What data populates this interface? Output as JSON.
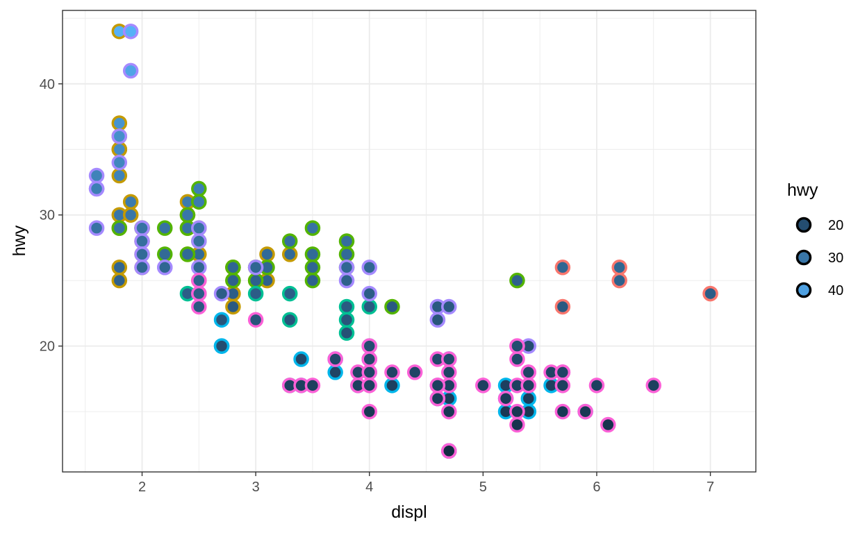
{
  "chart_data": {
    "type": "scatter",
    "title": "",
    "xlabel": "displ",
    "ylabel": "hwy",
    "xlim": [
      1.3,
      7.4
    ],
    "ylim": [
      10.4,
      45.6
    ],
    "x_ticks": [
      2,
      3,
      4,
      5,
      6,
      7
    ],
    "y_ticks": [
      20,
      30,
      40
    ],
    "grid": true,
    "legend": {
      "title": "hwy",
      "placement": "right",
      "entries": [
        {
          "label": "20",
          "value": 20
        },
        {
          "label": "30",
          "value": 30
        },
        {
          "label": "40",
          "value": 40
        }
      ]
    },
    "fill_scale": {
      "low_value": 12,
      "high_value": 44,
      "low_color": "#132B43",
      "high_color": "#56B1F7"
    },
    "series": [
      {
        "color": "#F8766D",
        "points": [
          [
            5.7,
            26
          ],
          [
            6.2,
            26
          ],
          [
            6.2,
            25
          ],
          [
            5.7,
            23
          ],
          [
            7.0,
            24
          ]
        ]
      },
      {
        "color": "#C49A00",
        "points": [
          [
            1.8,
            44
          ],
          [
            1.8,
            37
          ],
          [
            1.8,
            36
          ],
          [
            1.8,
            35
          ],
          [
            1.8,
            35
          ],
          [
            1.8,
            33
          ],
          [
            1.8,
            30
          ],
          [
            1.8,
            29
          ],
          [
            1.8,
            26
          ],
          [
            1.8,
            25
          ],
          [
            1.9,
            31
          ],
          [
            1.9,
            30
          ],
          [
            2.0,
            29
          ],
          [
            2.0,
            28
          ],
          [
            2.0,
            27
          ],
          [
            2.0,
            26
          ],
          [
            2.0,
            29
          ],
          [
            2.4,
            31
          ],
          [
            2.4,
            30
          ],
          [
            2.4,
            29
          ],
          [
            2.4,
            27
          ],
          [
            2.5,
            29
          ],
          [
            2.5,
            27
          ],
          [
            2.5,
            25
          ],
          [
            2.8,
            26
          ],
          [
            2.8,
            26
          ],
          [
            2.8,
            25
          ],
          [
            2.8,
            24
          ],
          [
            2.8,
            23
          ],
          [
            3.0,
            26
          ],
          [
            3.0,
            25
          ],
          [
            3.1,
            27
          ],
          [
            3.1,
            25
          ],
          [
            3.3,
            27
          ]
        ]
      },
      {
        "color": "#53B400",
        "points": [
          [
            1.8,
            29
          ],
          [
            2.0,
            29
          ],
          [
            2.2,
            29
          ],
          [
            2.2,
            27
          ],
          [
            2.4,
            30
          ],
          [
            2.4,
            29
          ],
          [
            2.4,
            27
          ],
          [
            2.5,
            32
          ],
          [
            2.5,
            31
          ],
          [
            2.5,
            28
          ],
          [
            2.8,
            25
          ],
          [
            2.8,
            26
          ],
          [
            3.0,
            25
          ],
          [
            3.0,
            26
          ],
          [
            3.1,
            26
          ],
          [
            3.3,
            28
          ],
          [
            3.5,
            29
          ],
          [
            3.5,
            27
          ],
          [
            3.5,
            26
          ],
          [
            3.5,
            25
          ],
          [
            3.8,
            27
          ],
          [
            3.8,
            26
          ],
          [
            3.8,
            28
          ],
          [
            4.2,
            23
          ],
          [
            5.3,
            25
          ]
        ]
      },
      {
        "color": "#00C094",
        "points": [
          [
            2.4,
            24
          ],
          [
            2.5,
            24
          ],
          [
            3.0,
            24
          ],
          [
            3.3,
            24
          ],
          [
            3.3,
            22
          ],
          [
            3.3,
            17
          ],
          [
            3.8,
            23
          ],
          [
            3.8,
            22
          ],
          [
            3.8,
            21
          ],
          [
            4.0,
            23
          ],
          [
            4.0,
            20
          ],
          [
            4.0,
            19
          ]
        ]
      },
      {
        "color": "#00B6EB",
        "points": [
          [
            2.7,
            22
          ],
          [
            2.7,
            20
          ],
          [
            2.7,
            20
          ],
          [
            3.4,
            19
          ],
          [
            3.4,
            17
          ],
          [
            3.7,
            19
          ],
          [
            3.7,
            18
          ],
          [
            3.9,
            17
          ],
          [
            4.0,
            19
          ],
          [
            4.0,
            18
          ],
          [
            4.2,
            17
          ],
          [
            4.6,
            16
          ],
          [
            4.6,
            17
          ],
          [
            4.7,
            19
          ],
          [
            4.7,
            17
          ],
          [
            4.7,
            16
          ],
          [
            4.7,
            12
          ],
          [
            4.7,
            12
          ],
          [
            5.2,
            17
          ],
          [
            5.2,
            16
          ],
          [
            5.2,
            15
          ],
          [
            5.4,
            16
          ],
          [
            5.4,
            15
          ],
          [
            5.6,
            17
          ],
          [
            5.9,
            15
          ]
        ]
      },
      {
        "color": "#A58AFF",
        "points": [
          [
            1.6,
            32
          ],
          [
            1.6,
            33
          ],
          [
            1.6,
            32
          ],
          [
            1.6,
            29
          ],
          [
            1.6,
            32
          ],
          [
            1.8,
            36
          ],
          [
            1.8,
            34
          ],
          [
            1.9,
            41
          ],
          [
            1.9,
            44
          ],
          [
            2.0,
            29
          ],
          [
            2.0,
            28
          ],
          [
            2.0,
            27
          ],
          [
            2.0,
            26
          ],
          [
            2.2,
            26
          ],
          [
            2.2,
            26
          ],
          [
            2.5,
            29
          ],
          [
            2.5,
            28
          ],
          [
            2.5,
            26
          ],
          [
            2.5,
            26
          ],
          [
            2.7,
            24
          ],
          [
            3.0,
            26
          ],
          [
            3.8,
            25
          ],
          [
            3.8,
            26
          ],
          [
            4.0,
            26
          ],
          [
            4.0,
            24
          ],
          [
            4.6,
            23
          ],
          [
            4.6,
            22
          ],
          [
            4.6,
            22
          ],
          [
            4.7,
            23
          ],
          [
            5.4,
            20
          ],
          [
            5.7,
            18
          ]
        ]
      },
      {
        "color": "#FB61D7",
        "points": [
          [
            2.5,
            25
          ],
          [
            2.5,
            24
          ],
          [
            2.5,
            23
          ],
          [
            3.0,
            22
          ],
          [
            3.3,
            17
          ],
          [
            3.4,
            17
          ],
          [
            3.5,
            17
          ],
          [
            3.9,
            17
          ],
          [
            3.9,
            18
          ],
          [
            4.0,
            17
          ],
          [
            4.0,
            15
          ],
          [
            4.0,
            18
          ],
          [
            4.0,
            19
          ],
          [
            4.0,
            20
          ],
          [
            4.0,
            19
          ],
          [
            4.2,
            18
          ],
          [
            4.4,
            18
          ],
          [
            4.6,
            19
          ],
          [
            4.6,
            17
          ],
          [
            4.6,
            16
          ],
          [
            4.7,
            18
          ],
          [
            4.7,
            17
          ],
          [
            4.7,
            15
          ],
          [
            4.7,
            12
          ],
          [
            4.7,
            12
          ],
          [
            4.7,
            19
          ],
          [
            5.0,
            17
          ],
          [
            5.0,
            17
          ],
          [
            5.2,
            16
          ],
          [
            5.3,
            19
          ],
          [
            5.3,
            20
          ],
          [
            5.3,
            15
          ],
          [
            5.3,
            14
          ],
          [
            5.3,
            17
          ],
          [
            5.3,
            20
          ],
          [
            5.4,
            18
          ],
          [
            5.4,
            17
          ],
          [
            5.4,
            17
          ],
          [
            5.4,
            18
          ],
          [
            5.6,
            18
          ],
          [
            5.7,
            18
          ],
          [
            5.7,
            18
          ],
          [
            5.7,
            17
          ],
          [
            5.7,
            15
          ],
          [
            5.9,
            15
          ],
          [
            6.0,
            17
          ],
          [
            6.1,
            14
          ],
          [
            6.5,
            17
          ],
          [
            4.6,
            17
          ],
          [
            3.7,
            19
          ]
        ]
      }
    ]
  }
}
